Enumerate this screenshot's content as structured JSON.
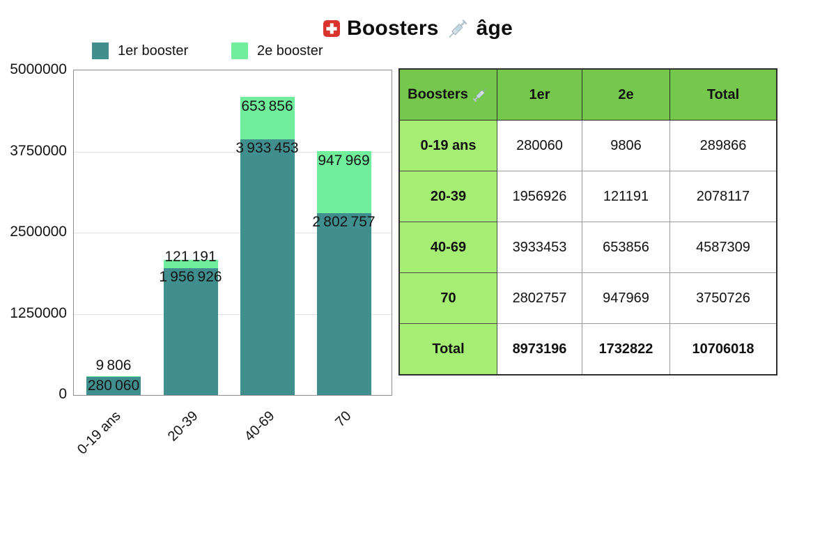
{
  "title": {
    "part1": "Boosters",
    "part2": "âge"
  },
  "legend": [
    {
      "label": "1er booster",
      "color": "#418E8F"
    },
    {
      "label": "2e booster",
      "color": "#70EE9C"
    }
  ],
  "chart_data": {
    "type": "bar",
    "stacked": true,
    "title": "Boosters âge",
    "xlabel": "",
    "ylabel": "",
    "categories": [
      "0-19 ans",
      "20-39",
      "40-69",
      "70"
    ],
    "series": [
      {
        "name": "1er booster",
        "color": "#418E8F",
        "values": [
          280060,
          1956926,
          3933453,
          2802757
        ],
        "value_labels": [
          "280 060",
          "1 956 926",
          "3 933 453",
          "2 802 757"
        ]
      },
      {
        "name": "2e booster",
        "color": "#70EE9C",
        "values": [
          9806,
          121191,
          653856,
          947969
        ],
        "value_labels": [
          "9 806",
          "121 191",
          "653 856",
          "947 969"
        ]
      }
    ],
    "ylim": [
      0,
      5000000
    ],
    "yticks": [
      0,
      1250000,
      2500000,
      3750000,
      5000000
    ],
    "ytick_labels": [
      "0",
      "1250000",
      "2500000",
      "3750000",
      "5000000"
    ],
    "grid": true,
    "legend_position": "top-left"
  },
  "table": {
    "headers": [
      "Boosters",
      "1er",
      "2e",
      "Total"
    ],
    "rows": [
      {
        "label": "0-19 ans",
        "values": [
          "280060",
          "9806",
          "289866"
        ]
      },
      {
        "label": "20-39",
        "values": [
          "1956926",
          "121191",
          "2078117"
        ]
      },
      {
        "label": "40-69",
        "values": [
          "3933453",
          "653856",
          "4587309"
        ]
      },
      {
        "label": "70",
        "values": [
          "2802757",
          "947969",
          "3750726"
        ]
      },
      {
        "label": "Total",
        "values": [
          "8973196",
          "1732822",
          "10706018"
        ],
        "bold": true
      }
    ],
    "colors": {
      "header_bg": "#76C84D",
      "row_header_bg": "#A5EE73"
    }
  },
  "colors": {
    "bar_1er": "#418E8F",
    "bar_2e": "#70EE9C",
    "gridline": "#E1E1E1",
    "flag_red": "#DA342E"
  }
}
